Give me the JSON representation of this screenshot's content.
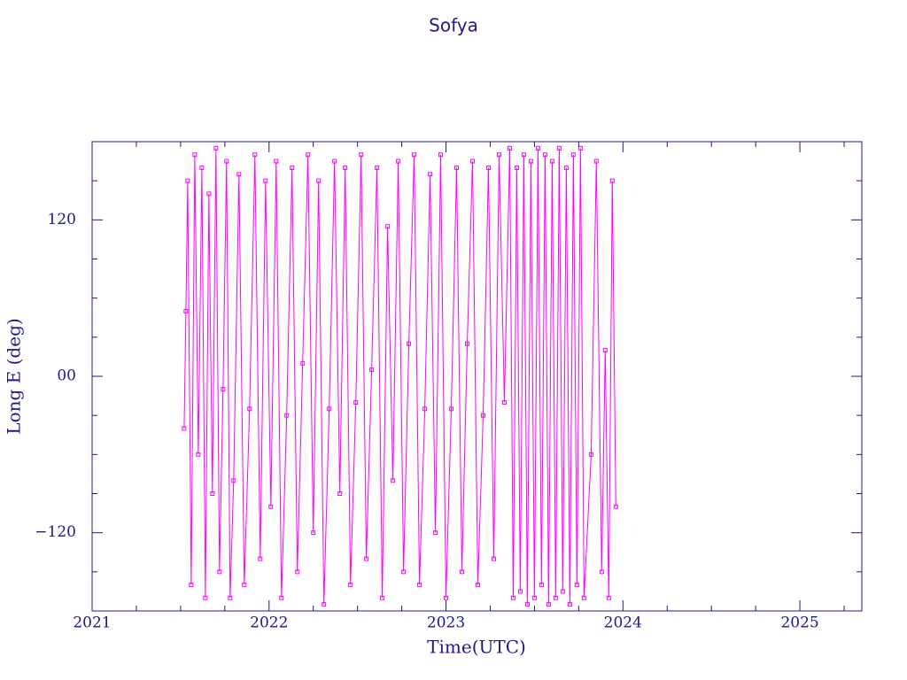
{
  "chart_data": {
    "type": "line",
    "title": "Sofya",
    "xlabel": "Time(UTC)",
    "ylabel": "Long E (deg)",
    "color": "#ff00ff",
    "axis_color": "#1a1a8c",
    "markers": true,
    "xlim": [
      2021,
      2025.35
    ],
    "xticks": [
      2021,
      2022,
      2023,
      2024,
      2025
    ],
    "xminorticks": [
      2021.25,
      2021.5,
      2021.75,
      2022.25,
      2022.5,
      2022.75,
      2023.25,
      2023.5,
      2023.75,
      2024.25,
      2024.5,
      2024.75,
      2025.25
    ],
    "ylim": [
      -180,
      180
    ],
    "yticks": [
      {
        "value": -120,
        "label": "−120"
      },
      {
        "value": 0,
        "label": "00"
      },
      120
    ],
    "yminorticks": [
      -150,
      -90,
      -60,
      -30,
      30,
      60,
      90,
      150
    ],
    "x": [
      2021.52,
      2021.53,
      2021.54,
      2021.56,
      2021.58,
      2021.6,
      2021.62,
      2021.64,
      2021.66,
      2021.68,
      2021.7,
      2021.72,
      2021.74,
      2021.76,
      2021.78,
      2021.8,
      2021.83,
      2021.86,
      2021.89,
      2021.92,
      2021.95,
      2021.98,
      2022.01,
      2022.04,
      2022.07,
      2022.1,
      2022.13,
      2022.16,
      2022.19,
      2022.22,
      2022.25,
      2022.28,
      2022.31,
      2022.34,
      2022.37,
      2022.4,
      2022.43,
      2022.46,
      2022.49,
      2022.52,
      2022.55,
      2022.58,
      2022.61,
      2022.64,
      2022.67,
      2022.7,
      2022.73,
      2022.76,
      2022.79,
      2022.82,
      2022.85,
      2022.88,
      2022.91,
      2022.94,
      2022.97,
      2023.0,
      2023.03,
      2023.06,
      2023.09,
      2023.12,
      2023.15,
      2023.18,
      2023.21,
      2023.24,
      2023.27,
      2023.3,
      2023.33,
      2023.36,
      2023.38,
      2023.4,
      2023.42,
      2023.44,
      2023.46,
      2023.48,
      2023.5,
      2023.52,
      2023.54,
      2023.56,
      2023.58,
      2023.6,
      2023.62,
      2023.64,
      2023.66,
      2023.68,
      2023.7,
      2023.72,
      2023.74,
      2023.76,
      2023.78,
      2023.82,
      2023.85,
      2023.88,
      2023.9,
      2023.92,
      2023.94,
      2023.96
    ],
    "values": [
      -40,
      50,
      150,
      -160,
      170,
      -60,
      160,
      -170,
      140,
      -90,
      175,
      -150,
      -10,
      165,
      -170,
      -80,
      155,
      -160,
      -25,
      170,
      -140,
      150,
      -100,
      165,
      -170,
      -30,
      160,
      -150,
      10,
      170,
      -120,
      150,
      -175,
      -25,
      165,
      -90,
      160,
      -160,
      -20,
      170,
      -140,
      5,
      160,
      -170,
      115,
      -80,
      165,
      -150,
      25,
      170,
      -160,
      -25,
      155,
      -120,
      170,
      -170,
      -25,
      160,
      -150,
      25,
      165,
      -160,
      -30,
      160,
      -140,
      170,
      -20,
      175,
      -170,
      160,
      -165,
      170,
      -175,
      165,
      -170,
      175,
      -160,
      170,
      -175,
      165,
      -170,
      175,
      -165,
      160,
      -175,
      170,
      -160,
      175,
      -170,
      -60,
      165,
      -150,
      20,
      -170,
      150,
      -100
    ]
  }
}
